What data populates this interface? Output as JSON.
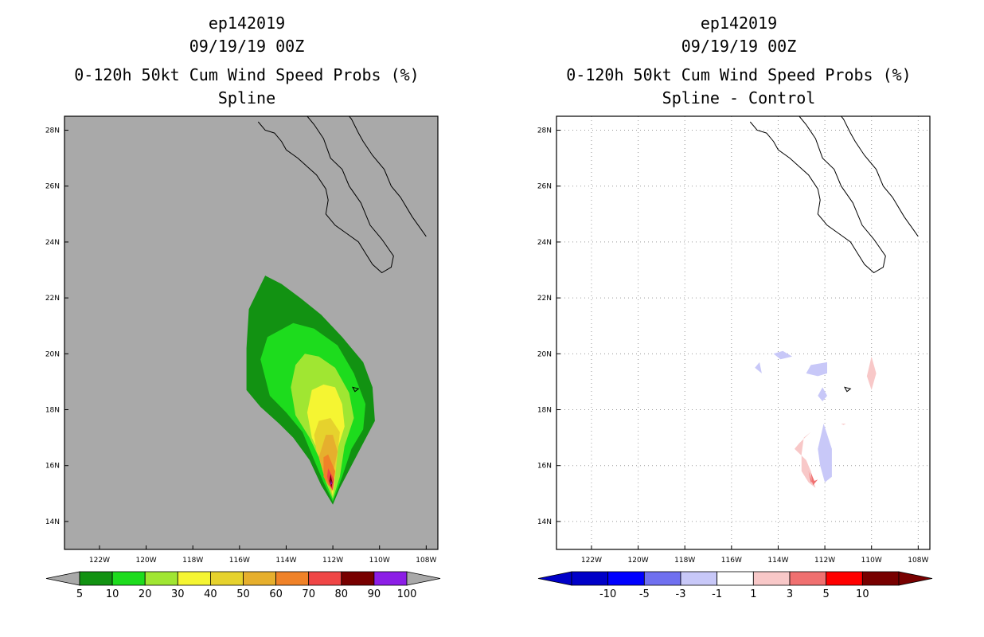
{
  "chart_data": [
    {
      "type": "filled-contour-map",
      "title_lines": [
        "ep142019",
        "09/19/19 00Z",
        "0-120h 50kt Cum Wind Speed Probs (%)",
        "Spline"
      ],
      "storm_id": "ep142019",
      "valid_time": "09/19/19 00Z",
      "variable": "0-120h 50kt Cum Wind Speed Probs (%)",
      "panel_label": "Spline",
      "background_color": "#a9a9a9",
      "xlim_lon_west": [
        123.5,
        107.5
      ],
      "ylim_lat_north": [
        13,
        28.5
      ],
      "x_ticks": [
        {
          "v": 122,
          "label": "122W"
        },
        {
          "v": 120,
          "label": "120W"
        },
        {
          "v": 118,
          "label": "118W"
        },
        {
          "v": 116,
          "label": "116W"
        },
        {
          "v": 114,
          "label": "114W"
        },
        {
          "v": 112,
          "label": "112W"
        },
        {
          "v": 110,
          "label": "110W"
        },
        {
          "v": 108,
          "label": "108W"
        }
      ],
      "y_ticks": [
        {
          "v": 14,
          "label": "14N"
        },
        {
          "v": 16,
          "label": "16N"
        },
        {
          "v": 18,
          "label": "18N"
        },
        {
          "v": 20,
          "label": "20N"
        },
        {
          "v": 22,
          "label": "22N"
        },
        {
          "v": 24,
          "label": "24N"
        },
        {
          "v": 26,
          "label": "26N"
        },
        {
          "v": 28,
          "label": "28N"
        }
      ],
      "colorbar": {
        "labels": [
          "5",
          "10",
          "20",
          "30",
          "40",
          "50",
          "60",
          "70",
          "80",
          "90",
          "100"
        ],
        "colors": [
          "#129212",
          "#1ddc1d",
          "#a0e632",
          "#f5f532",
          "#e6d22d",
          "#e6af2d",
          "#f08228",
          "#f04646",
          "#780000",
          "#8c1ee6"
        ],
        "end_colors": [
          "#a9a9a9",
          "#a9a9a9"
        ]
      },
      "contours": [
        {
          "level": 5,
          "color": "#129212",
          "points": [
            [
              115.6,
              21.6
            ],
            [
              114.9,
              22.8
            ],
            [
              114.2,
              22.5
            ],
            [
              113.4,
              22.0
            ],
            [
              112.5,
              21.4
            ],
            [
              111.6,
              20.6
            ],
            [
              110.7,
              19.7
            ],
            [
              110.3,
              18.8
            ],
            [
              110.2,
              17.6
            ],
            [
              110.7,
              16.8
            ],
            [
              111.2,
              16.0
            ],
            [
              111.7,
              15.2
            ],
            [
              112,
              14.6
            ],
            [
              112.5,
              15.3
            ],
            [
              113.0,
              16.2
            ],
            [
              113.7,
              17.0
            ],
            [
              114.3,
              17.5
            ],
            [
              115.1,
              18.1
            ],
            [
              115.7,
              18.7
            ],
            [
              115.7,
              20.2
            ]
          ]
        },
        {
          "level": 10,
          "color": "#1ddc1d",
          "points": [
            [
              115.1,
              19.8
            ],
            [
              114.8,
              20.6
            ],
            [
              113.7,
              21.1
            ],
            [
              112.8,
              20.9
            ],
            [
              111.8,
              20.3
            ],
            [
              111.1,
              19.3
            ],
            [
              110.6,
              18.2
            ],
            [
              110.7,
              17.3
            ],
            [
              111.2,
              16.6
            ],
            [
              111.6,
              15.6
            ],
            [
              112,
              14.7
            ],
            [
              112.4,
              15.4
            ],
            [
              112.8,
              16.2
            ],
            [
              113.3,
              17.2
            ],
            [
              114.0,
              17.9
            ],
            [
              114.7,
              18.5
            ]
          ]
        },
        {
          "level": 20,
          "color": "#a0e632",
          "points": [
            [
              113.6,
              19.6
            ],
            [
              113.2,
              20.0
            ],
            [
              112.6,
              19.9
            ],
            [
              111.9,
              19.5
            ],
            [
              111.3,
              18.6
            ],
            [
              111.1,
              17.7
            ],
            [
              111.5,
              16.7
            ],
            [
              111.7,
              15.6
            ],
            [
              112,
              14.8
            ],
            [
              112.3,
              15.4
            ],
            [
              112.6,
              16.3
            ],
            [
              113.0,
              17.0
            ],
            [
              113.6,
              17.8
            ],
            [
              113.8,
              18.8
            ]
          ]
        },
        {
          "level": 30,
          "color": "#f5f532",
          "points": [
            [
              112.9,
              18.7
            ],
            [
              112.4,
              18.9
            ],
            [
              111.9,
              18.8
            ],
            [
              111.6,
              18.2
            ],
            [
              111.5,
              17.4
            ],
            [
              111.8,
              16.6
            ],
            [
              111.9,
              15.6
            ],
            [
              112,
              14.9
            ],
            [
              112.2,
              15.5
            ],
            [
              112.5,
              16.3
            ],
            [
              112.9,
              17.0
            ],
            [
              113.1,
              17.9
            ]
          ]
        },
        {
          "level": 40,
          "color": "#e6d22d",
          "points": [
            [
              112.6,
              17.6
            ],
            [
              112.1,
              17.7
            ],
            [
              111.7,
              17.2
            ],
            [
              111.8,
              16.4
            ],
            [
              111.9,
              15.6
            ],
            [
              112.05,
              15.0
            ],
            [
              112.3,
              15.8
            ],
            [
              112.7,
              16.5
            ],
            [
              112.8,
              17.1
            ]
          ]
        },
        {
          "level": 50,
          "color": "#e6af2d",
          "points": [
            [
              112.3,
              17.1
            ],
            [
              112.0,
              17.1
            ],
            [
              111.8,
              16.5
            ],
            [
              112.0,
              15.7
            ],
            [
              112.05,
              15.1
            ],
            [
              112.4,
              15.7
            ],
            [
              112.6,
              16.3
            ]
          ]
        },
        {
          "level": 60,
          "color": "#f08228",
          "points": [
            [
              112.4,
              16.3
            ],
            [
              112.2,
              16.4
            ],
            [
              111.9,
              15.8
            ],
            [
              112.0,
              15.2
            ],
            [
              112.2,
              15.3
            ],
            [
              112.4,
              15.6
            ]
          ]
        },
        {
          "level": 70,
          "color": "#f04646",
          "points": [
            [
              112.2,
              15.9
            ],
            [
              111.95,
              15.5
            ],
            [
              112.0,
              15.1
            ],
            [
              112.15,
              15.3
            ],
            [
              112.25,
              15.6
            ]
          ]
        },
        {
          "level": 80,
          "color": "#780000",
          "points": [
            [
              112.1,
              15.7
            ],
            [
              112.02,
              15.4
            ],
            [
              112.06,
              15.2
            ],
            [
              112.15,
              15.45
            ]
          ]
        },
        {
          "level": 90,
          "color": "#8c1ee6",
          "points": [
            [
              112.08,
              15.5
            ],
            [
              112.04,
              15.35
            ],
            [
              112.1,
              15.3
            ]
          ]
        }
      ]
    },
    {
      "type": "filled-contour-map",
      "title_lines": [
        "ep142019",
        "09/19/19 00Z",
        "0-120h 50kt Cum Wind Speed Probs (%)",
        "Spline - Control"
      ],
      "storm_id": "ep142019",
      "valid_time": "09/19/19 00Z",
      "variable": "0-120h 50kt Cum Wind Speed Probs (%)",
      "panel_label": "Spline - Control",
      "background_color": "#ffffff",
      "xlim_lon_west": [
        123.5,
        107.5
      ],
      "ylim_lat_north": [
        13,
        28.5
      ],
      "x_ticks": [
        {
          "v": 122,
          "label": "122W"
        },
        {
          "v": 120,
          "label": "120W"
        },
        {
          "v": 118,
          "label": "118W"
        },
        {
          "v": 116,
          "label": "116W"
        },
        {
          "v": 114,
          "label": "114W"
        },
        {
          "v": 112,
          "label": "112W"
        },
        {
          "v": 110,
          "label": "110W"
        },
        {
          "v": 108,
          "label": "108W"
        }
      ],
      "y_ticks": [
        {
          "v": 14,
          "label": "14N"
        },
        {
          "v": 16,
          "label": "16N"
        },
        {
          "v": 18,
          "label": "18N"
        },
        {
          "v": 20,
          "label": "20N"
        },
        {
          "v": 22,
          "label": "22N"
        },
        {
          "v": 24,
          "label": "24N"
        },
        {
          "v": 26,
          "label": "26N"
        },
        {
          "v": 28,
          "label": "28N"
        }
      ],
      "colorbar": {
        "labels": [
          "-10",
          "-5",
          "-3",
          "-1",
          "1",
          "3",
          "5",
          "10"
        ],
        "colors": [
          "#0000c8",
          "#0000ff",
          "#7070f0",
          "#c8c8f8",
          "#ffffff",
          "#f8c8c8",
          "#f07070",
          "#ff0000",
          "#780000"
        ],
        "end_colors": [
          "#0000c8",
          "#780000"
        ]
      },
      "contours": [
        {
          "level": -1,
          "color": "#c8c8f8",
          "points": [
            [
              114.2,
              20.0
            ],
            [
              113.8,
              20.1
            ],
            [
              113.4,
              19.9
            ],
            [
              113.9,
              19.8
            ]
          ]
        },
        {
          "level": -1,
          "color": "#c8c8f8",
          "points": [
            [
              115.0,
              19.5
            ],
            [
              114.8,
              19.7
            ],
            [
              114.7,
              19.3
            ]
          ]
        },
        {
          "level": -1,
          "color": "#c8c8f8",
          "points": [
            [
              112.6,
              19.6
            ],
            [
              111.9,
              19.7
            ],
            [
              111.9,
              19.3
            ],
            [
              112.3,
              19.2
            ],
            [
              112.8,
              19.3
            ]
          ]
        },
        {
          "level": -1,
          "color": "#c8c8f8",
          "points": [
            [
              112.1,
              18.8
            ],
            [
              111.9,
              18.5
            ],
            [
              112.1,
              18.3
            ],
            [
              112.3,
              18.5
            ]
          ]
        },
        {
          "level": -1,
          "color": "#c8c8f8",
          "points": [
            [
              112.05,
              17.5
            ],
            [
              111.7,
              16.6
            ],
            [
              111.7,
              15.6
            ],
            [
              112.0,
              15.4
            ],
            [
              112.2,
              16.0
            ],
            [
              112.3,
              16.6
            ]
          ]
        },
        {
          "level": 1,
          "color": "#f8c8c8",
          "points": [
            [
              110.0,
              19.9
            ],
            [
              109.8,
              19.3
            ],
            [
              110.0,
              18.7
            ],
            [
              110.2,
              19.2
            ]
          ]
        },
        {
          "level": 1,
          "color": "#f8c8c8",
          "points": [
            [
              112.9,
              17.0
            ],
            [
              112.6,
              17.2
            ],
            [
              113.1,
              16.8
            ],
            [
              113.3,
              16.6
            ],
            [
              112.8,
              16.2
            ],
            [
              112.6,
              15.8
            ],
            [
              112.4,
              15.2
            ],
            [
              112.7,
              15.4
            ],
            [
              113.0,
              15.8
            ],
            [
              113.0,
              16.4
            ]
          ]
        },
        {
          "level": 1,
          "color": "#f8c8c8",
          "points": [
            [
              111.3,
              17.5
            ],
            [
              111.1,
              17.5
            ],
            [
              111.2,
              17.45
            ]
          ]
        },
        {
          "level": 3,
          "color": "#f07070",
          "points": [
            [
              112.7,
              15.8
            ],
            [
              112.5,
              15.3
            ],
            [
              112.3,
              15.5
            ],
            [
              112.6,
              15.4
            ]
          ]
        },
        {
          "level": 3,
          "color": "#f07070",
          "points": [
            [
              112.6,
              15.75
            ],
            [
              112.55,
              15.4
            ],
            [
              112.45,
              15.45
            ]
          ]
        }
      ]
    }
  ]
}
